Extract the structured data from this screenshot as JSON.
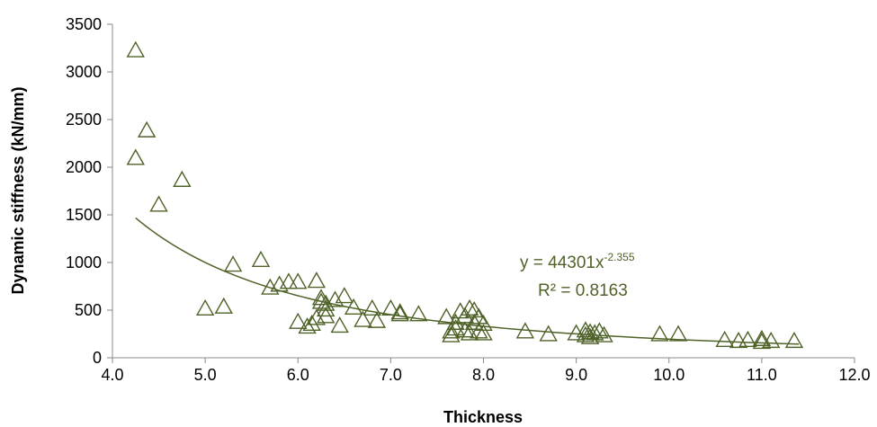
{
  "chart_data": {
    "type": "scatter",
    "title": "",
    "xlabel": "Thickness",
    "ylabel": "Dynamic stiffness (kN/mm)",
    "xlim": [
      4.0,
      12.0
    ],
    "ylim": [
      0,
      3500
    ],
    "x_ticks": [
      "4.0",
      "5.0",
      "6.0",
      "7.0",
      "8.0",
      "9.0",
      "10.0",
      "11.0",
      "12.0"
    ],
    "y_ticks": [
      "0",
      "500",
      "1000",
      "1500",
      "2000",
      "2500",
      "3000",
      "3500"
    ],
    "grid": false,
    "legend": "none",
    "marker": "triangle-open",
    "series_color": "#4f6228",
    "points": [
      [
        4.25,
        3220
      ],
      [
        4.37,
        2380
      ],
      [
        4.25,
        2090
      ],
      [
        4.75,
        1860
      ],
      [
        4.5,
        1600
      ],
      [
        5.3,
        970
      ],
      [
        5.6,
        1020
      ],
      [
        5.0,
        510
      ],
      [
        5.2,
        530
      ],
      [
        5.7,
        730
      ],
      [
        5.8,
        760
      ],
      [
        5.9,
        790
      ],
      [
        6.0,
        790
      ],
      [
        6.2,
        800
      ],
      [
        6.0,
        370
      ],
      [
        6.1,
        320
      ],
      [
        6.15,
        350
      ],
      [
        6.2,
        410
      ],
      [
        6.25,
        620
      ],
      [
        6.25,
        580
      ],
      [
        6.3,
        560
      ],
      [
        6.3,
        430
      ],
      [
        6.3,
        500
      ],
      [
        6.4,
        600
      ],
      [
        6.45,
        330
      ],
      [
        6.5,
        640
      ],
      [
        6.6,
        520
      ],
      [
        6.7,
        390
      ],
      [
        6.8,
        510
      ],
      [
        6.85,
        380
      ],
      [
        7.0,
        510
      ],
      [
        7.1,
        470
      ],
      [
        7.1,
        450
      ],
      [
        7.3,
        450
      ],
      [
        7.6,
        420
      ],
      [
        7.65,
        230
      ],
      [
        7.65,
        270
      ],
      [
        7.7,
        360
      ],
      [
        7.7,
        300
      ],
      [
        7.75,
        480
      ],
      [
        7.8,
        430
      ],
      [
        7.8,
        280
      ],
      [
        7.85,
        510
      ],
      [
        7.85,
        250
      ],
      [
        7.9,
        490
      ],
      [
        7.9,
        360
      ],
      [
        7.95,
        420
      ],
      [
        7.95,
        270
      ],
      [
        8.0,
        350
      ],
      [
        8.0,
        250
      ],
      [
        8.45,
        270
      ],
      [
        8.7,
        240
      ],
      [
        9.0,
        250
      ],
      [
        9.1,
        280
      ],
      [
        9.1,
        230
      ],
      [
        9.15,
        260
      ],
      [
        9.15,
        210
      ],
      [
        9.2,
        250
      ],
      [
        9.25,
        270
      ],
      [
        9.3,
        230
      ],
      [
        9.9,
        240
      ],
      [
        10.1,
        240
      ],
      [
        10.6,
        180
      ],
      [
        10.75,
        170
      ],
      [
        10.85,
        180
      ],
      [
        11.0,
        190
      ],
      [
        11.0,
        160
      ],
      [
        11.1,
        170
      ],
      [
        11.35,
        170
      ]
    ],
    "trendline": {
      "type": "power",
      "a": 44301,
      "b": -2.355,
      "x_range": [
        4.25,
        11.4
      ],
      "equation_prefix": "y = 44301x",
      "equation_exponent": "-2.355",
      "r_squared_label": "R² = 0.8163"
    }
  }
}
